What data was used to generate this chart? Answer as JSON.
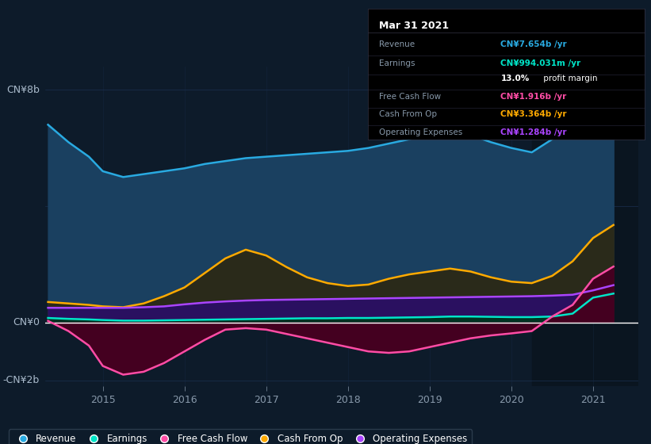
{
  "bg_color": "#0d1b2a",
  "plot_bg": "#0d1b2a",
  "title_box": {
    "date": "Mar 31 2021",
    "rows": [
      {
        "label": "Revenue",
        "value": "CN¥7.654b /yr",
        "value_color": "#29aae1"
      },
      {
        "label": "Earnings",
        "value": "CN¥994.031m /yr",
        "value_color": "#00e5c8"
      },
      {
        "label": "",
        "value": "13.0% profit margin",
        "value_color": "#ffffff",
        "bold_part": "13.0%"
      },
      {
        "label": "Free Cash Flow",
        "value": "CN¥1.916b /yr",
        "value_color": "#ff4da6"
      },
      {
        "label": "Cash From Op",
        "value": "CN¥3.364b /yr",
        "value_color": "#ffaa00"
      },
      {
        "label": "Operating Expenses",
        "value": "CN¥1.284b /yr",
        "value_color": "#aa44ff"
      }
    ]
  },
  "ylim": [
    -2.2,
    8.8
  ],
  "xlim_start": 2014.3,
  "xlim_end": 2021.55,
  "xticks": [
    2015,
    2016,
    2017,
    2018,
    2019,
    2020,
    2021
  ],
  "series": {
    "revenue": {
      "color": "#29aae1",
      "label": "Revenue"
    },
    "earnings": {
      "color": "#00e5c8",
      "label": "Earnings"
    },
    "fcf": {
      "color": "#ff4da6",
      "label": "Free Cash Flow"
    },
    "cashfromop": {
      "color": "#ffaa00",
      "label": "Cash From Op"
    },
    "opex": {
      "color": "#aa44ff",
      "label": "Operating Expenses"
    }
  },
  "highlight_start": 2020.25,
  "revenue_fill": "#1a4060",
  "cashfromop_fill": "#2a2a1a",
  "opex_fill": "#2a1060",
  "earnings_fill": "#003322",
  "fcf_fill": "#440020",
  "gridline_color": "#1a3050",
  "zero_line_color": "#ffffff",
  "highlight_overlay": "#0a1520"
}
